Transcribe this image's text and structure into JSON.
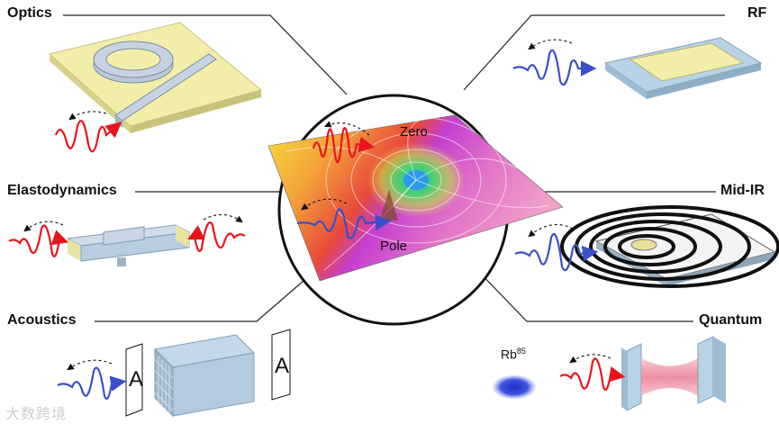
{
  "labels": {
    "optics": "Optics",
    "rf": "RF",
    "elastodynamics": "Elastodynamics",
    "midir": "Mid-IR",
    "acoustics": "Acoustics",
    "quantum": "Quantum"
  },
  "center": {
    "zero": "Zero",
    "pole": "Pole"
  },
  "acoustics": {
    "letter_left": "A",
    "letter_right": "A"
  },
  "quantum": {
    "atom_base": "Rb",
    "atom_sup": "85"
  },
  "watermark": "大数跨境",
  "colors": {
    "red_wave": "#e8141c",
    "blue_wave": "#3a4fc8",
    "plate_yellow": "#f2eeaa",
    "device_blue": "#b9d3e6"
  }
}
